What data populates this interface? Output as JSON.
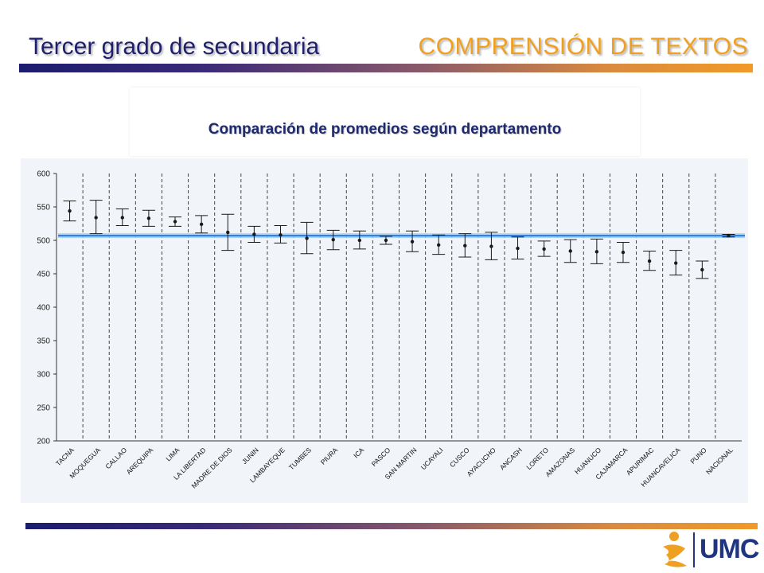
{
  "header": {
    "grade": "Tercer grado de secundaria",
    "subject": "COMPRENSIÓN DE TEXTOS"
  },
  "logo": {
    "text": "UMC"
  },
  "colors": {
    "navy": "#1f1f6e",
    "orange": "#f0a020",
    "reference_line": "#2a78e6",
    "error_bar": "#1a1a1a"
  },
  "chart_data": {
    "type": "scatter",
    "title": "Comparación de promedios según departamento",
    "xlabel": "",
    "ylabel": "",
    "ylim": [
      200,
      600
    ],
    "yticks": [
      200,
      250,
      300,
      350,
      400,
      450,
      500,
      550,
      600
    ],
    "grid": "vertical dashed",
    "reference_value": 507,
    "categories": [
      "TACNA",
      "MOQUEGUA",
      "CALLAO",
      "AREQUIPA",
      "LIMA",
      "LA LIBERTAD",
      "MADRE DE DIOS",
      "JUNIN",
      "LAMBAYEQUE",
      "TUMBES",
      "PIURA",
      "ICA",
      "PASCO",
      "SAN MARTIN",
      "UCAYALI",
      "CUSCO",
      "AYACUCHO",
      "ANCASH",
      "LORETO",
      "AMAZONAS",
      "HUANUCO",
      "CAJAMARCA",
      "APURIMAC",
      "HUANCAVELICA",
      "PUNO",
      "NACIONAL"
    ],
    "means": [
      544,
      534,
      534,
      533,
      528,
      524,
      512,
      509,
      508,
      503,
      501,
      500,
      500,
      498,
      493,
      492,
      491,
      488,
      487,
      484,
      483,
      482,
      469,
      466,
      456,
      507
    ],
    "lower": [
      529,
      510,
      522,
      521,
      521,
      511,
      485,
      497,
      496,
      480,
      486,
      487,
      494,
      483,
      479,
      475,
      471,
      472,
      476,
      467,
      465,
      467,
      455,
      448,
      443,
      505
    ],
    "upper": [
      559,
      560,
      547,
      545,
      535,
      537,
      539,
      521,
      522,
      527,
      515,
      514,
      506,
      514,
      508,
      510,
      512,
      505,
      499,
      501,
      502,
      497,
      484,
      485,
      469,
      509
    ]
  }
}
